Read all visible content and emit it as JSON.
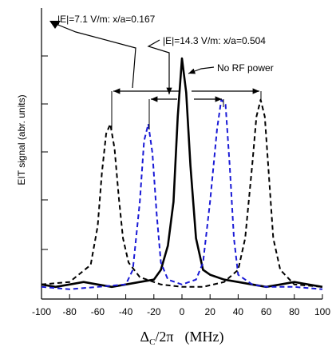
{
  "chart_data": {
    "type": "line",
    "xlabel_main": "Δ",
    "xlabel_sub": "C",
    "xlabel_rest": "/2π",
    "xlabel_units": "(MHz)",
    "ylabel": "EIT signal (abr. units)",
    "xlim": [
      -100,
      100
    ],
    "xticks": [
      -100,
      -80,
      -60,
      -40,
      -20,
      0,
      20,
      40,
      60,
      80,
      100
    ],
    "ylim": [
      0,
      1
    ],
    "grid": false,
    "annotations": [
      "|E|=7.1 V/m:  x/a=0.167",
      "|E|=14.3 V/m:  x/a=0.504",
      "No RF power"
    ],
    "series": [
      {
        "style": "solid",
        "color": "#000000",
        "x": [
          -100,
          -90,
          -80,
          -70,
          -60,
          -50,
          -40,
          -30,
          -20,
          -15,
          -10,
          -6,
          -3,
          0,
          3,
          6,
          10,
          15,
          20,
          30,
          40,
          50,
          60,
          70,
          80,
          90,
          100
        ],
        "y": [
          0.06,
          0.05,
          0.06,
          0.07,
          0.06,
          0.05,
          0.06,
          0.07,
          0.08,
          0.12,
          0.22,
          0.4,
          0.75,
          0.99,
          0.85,
          0.55,
          0.25,
          0.12,
          0.1,
          0.08,
          0.07,
          0.06,
          0.05,
          0.06,
          0.07,
          0.06,
          0.05
        ]
      },
      {
        "style": "dashed",
        "color": "#1a1ad6",
        "x": [
          -100,
          -80,
          -60,
          -40,
          -35,
          -30,
          -27,
          -24,
          -21,
          -18,
          -15,
          -10,
          0,
          10,
          15,
          20,
          25,
          28,
          31,
          34,
          37,
          40,
          50,
          60,
          80,
          100
        ],
        "y": [
          0.05,
          0.04,
          0.05,
          0.06,
          0.12,
          0.4,
          0.65,
          0.72,
          0.6,
          0.35,
          0.15,
          0.08,
          0.06,
          0.08,
          0.15,
          0.4,
          0.7,
          0.82,
          0.8,
          0.55,
          0.25,
          0.1,
          0.06,
          0.05,
          0.05,
          0.04
        ]
      },
      {
        "style": "dashed",
        "color": "#000000",
        "x": [
          -100,
          -80,
          -65,
          -60,
          -57,
          -54,
          -51,
          -48,
          -45,
          -42,
          -38,
          -30,
          -15,
          0,
          15,
          30,
          40,
          45,
          50,
          53,
          56,
          59,
          62,
          65,
          70,
          80,
          100
        ],
        "y": [
          0.06,
          0.07,
          0.14,
          0.3,
          0.52,
          0.68,
          0.72,
          0.62,
          0.42,
          0.25,
          0.15,
          0.09,
          0.06,
          0.05,
          0.05,
          0.07,
          0.12,
          0.25,
          0.55,
          0.75,
          0.82,
          0.75,
          0.5,
          0.25,
          0.12,
          0.06,
          0.05
        ]
      }
    ]
  }
}
